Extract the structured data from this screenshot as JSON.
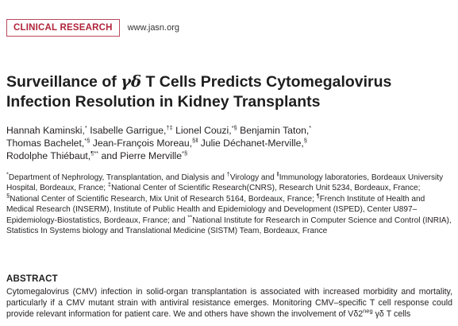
{
  "header": {
    "section_label": "CLINICAL RESEARCH",
    "site": "www.jasn.org"
  },
  "article": {
    "title_line1_pre": "Surveillance of ",
    "title_greek": "γδ",
    "title_line1_post": " T Cells Predicts Cytomegalovirus",
    "title_line2": "Infection Resolution in Kidney Transplants"
  },
  "authors": [
    {
      "name": "Hannah Kaminski,",
      "sup": "*"
    },
    {
      "name": "Isabelle Garrigue,",
      "sup": "†‡"
    },
    {
      "name": "Lionel Couzi,",
      "sup": "*§"
    },
    {
      "name": "Benjamin Taton,",
      "sup": "*"
    },
    {
      "name": "Thomas Bachelet,",
      "sup": "*§"
    },
    {
      "name": "Jean-François Moreau,",
      "sup": "§ǁ"
    },
    {
      "name": "Julie Déchanet-Merville,",
      "sup": "§"
    },
    {
      "name": "Rodolphe Thiébaut,",
      "sup": "¶**"
    },
    {
      "name": "and Pierre Merville",
      "sup": "*§"
    }
  ],
  "affiliations": {
    "a1_sup": "*",
    "a1": "Department of Nephrology, Transplantation, and Dialysis and ",
    "a2_sup": "†",
    "a2": "Virology and ",
    "a3_sup": "ǁ",
    "a3": "Immunology laboratories, Bordeaux University Hospital, Bordeaux, France; ",
    "a4_sup": "‡",
    "a4": "National Center of Scientific Research(CNRS), Research Unit 5234, Bordeaux, France; ",
    "a5_sup": "§",
    "a5": "National Center of Scientific Research, Mix Unit of Research 5164, Bordeaux, France; ",
    "a6_sup": "¶",
    "a6": "French Institute of Health and Medical Research (INSERM), Institute of Public Health and Epidemiology and Development (ISPED), Center U897–Epidemiology-Biostatistics, Bordeaux, France; and ",
    "a7_sup": "**",
    "a7": "National Institute for Research in Computer Science and Control (INRIA), Statistics In Systems biology and Translational Medicine (SISTM) Team, Bordeaux, France"
  },
  "abstract": {
    "heading": "ABSTRACT",
    "text_pre": "Cytomegalovirus (CMV) infection in solid-organ transplantation is associated with increased morbidity and mortality, particularly if a CMV mutant strain with antiviral resistance emerges. Monitoring CMV–specific T cell response could provide relevant information for patient care. We and others have shown the involvement of Vδ2",
    "text_sup": "neg",
    "text_post": " γδ T cells"
  }
}
